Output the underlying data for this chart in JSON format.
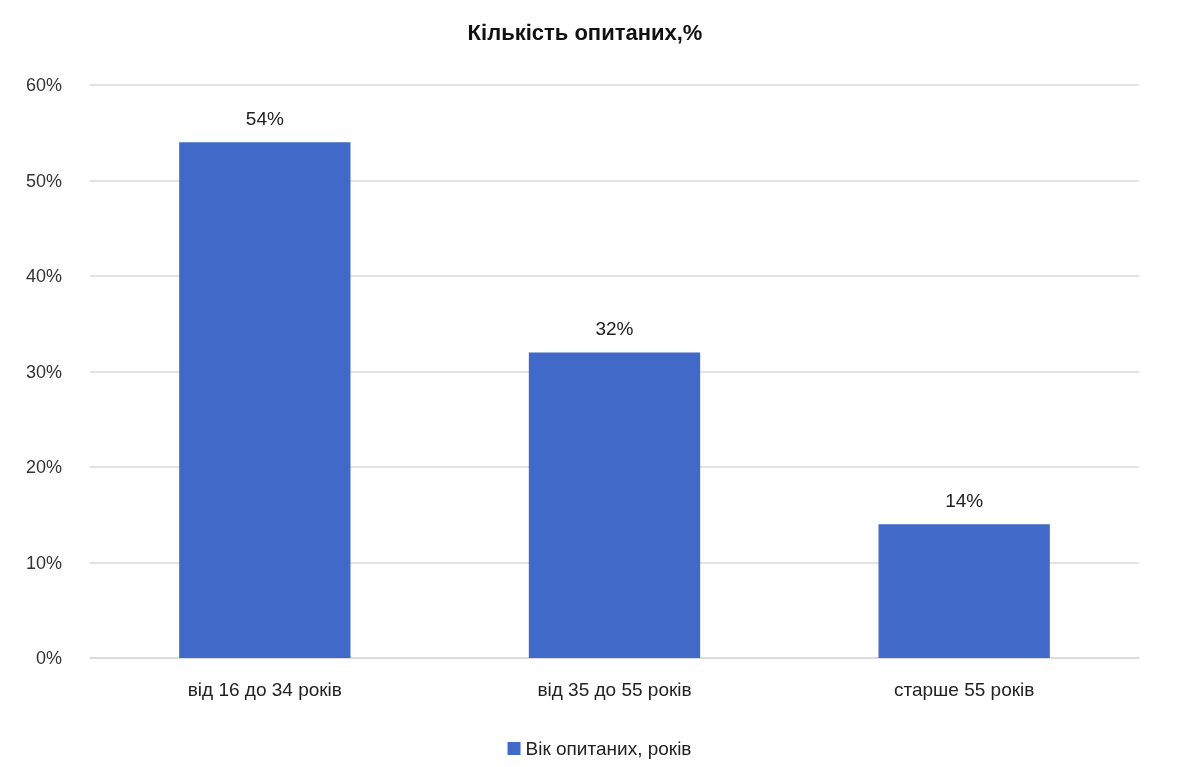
{
  "chart_data": {
    "type": "bar",
    "title": "Кількість опитаних,%",
    "categories": [
      "від 16 до 34 років",
      "від 35 до 55 років",
      "старше 55 років"
    ],
    "series": [
      {
        "name": "Вік опитаних, років",
        "color": "#4169c8",
        "values": [
          54,
          32,
          14
        ],
        "value_labels": [
          "54%",
          "32%",
          "14%"
        ]
      }
    ],
    "ylim": [
      0,
      60
    ],
    "yticks": [
      {
        "value": 0,
        "label": "0%"
      },
      {
        "value": 10,
        "label": "10%"
      },
      {
        "value": 20,
        "label": "20%"
      },
      {
        "value": 30,
        "label": "30%"
      },
      {
        "value": 40,
        "label": "40%"
      },
      {
        "value": 50,
        "label": "50%"
      },
      {
        "value": 60,
        "label": "60%"
      }
    ],
    "grid": "y",
    "legend": "bottom"
  }
}
